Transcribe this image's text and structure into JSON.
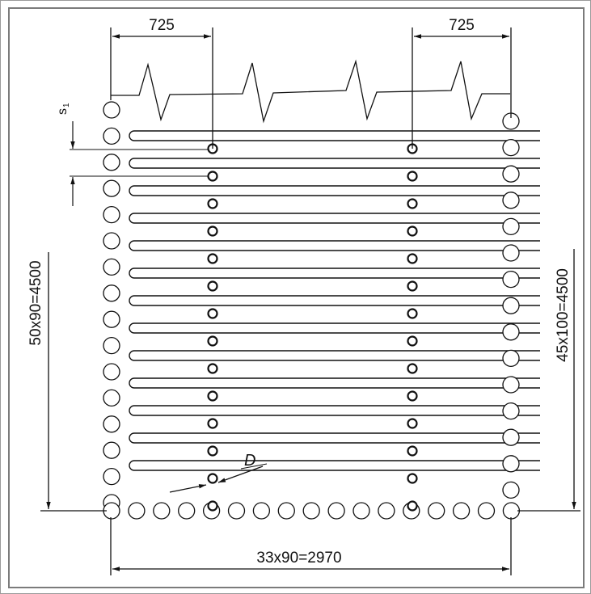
{
  "drawing": {
    "dim_top_left": "725",
    "dim_top_right": "725",
    "dim_left": "50x90=4500",
    "dim_right": "45x100=4500",
    "dim_bottom": "33x90=2970",
    "pipe_label": "D",
    "spacing_label": "s",
    "spacing_sub": "1"
  },
  "colors": {
    "line": "#111111",
    "frame": "#7b7b7b"
  }
}
